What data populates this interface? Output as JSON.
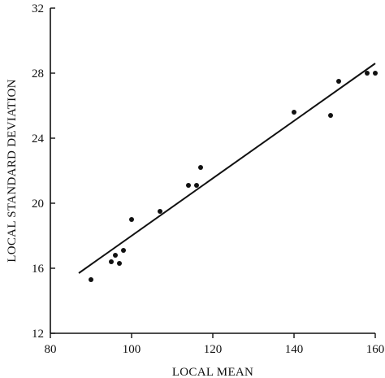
{
  "chart_data": {
    "type": "scatter",
    "title": "",
    "xlabel": "LOCAL  MEAN",
    "ylabel": "LOCAL STANDARD  DEVIATION",
    "xlim": [
      80,
      160
    ],
    "ylim": [
      12,
      32
    ],
    "xticks": [
      80,
      100,
      120,
      140,
      160
    ],
    "yticks": [
      12,
      16,
      20,
      24,
      28,
      32
    ],
    "grid": false,
    "legend": "none",
    "series": [
      {
        "points": [
          {
            "x": 90,
            "y": 15.3
          },
          {
            "x": 95,
            "y": 16.4
          },
          {
            "x": 96,
            "y": 16.8
          },
          {
            "x": 97,
            "y": 16.3
          },
          {
            "x": 98,
            "y": 17.1
          },
          {
            "x": 100,
            "y": 19.0
          },
          {
            "x": 107,
            "y": 19.5
          },
          {
            "x": 114,
            "y": 21.1
          },
          {
            "x": 116,
            "y": 21.1
          },
          {
            "x": 117,
            "y": 22.2
          },
          {
            "x": 140,
            "y": 25.6
          },
          {
            "x": 149,
            "y": 25.4
          },
          {
            "x": 151,
            "y": 27.5
          },
          {
            "x": 158,
            "y": 28.0
          },
          {
            "x": 160,
            "y": 28.0
          }
        ]
      }
    ],
    "regression_line": {
      "x": [
        87,
        160
      ],
      "y": [
        15.7,
        28.6
      ]
    },
    "colors": {
      "axis": "#111111",
      "marker": "#111111",
      "line": "#111111"
    }
  }
}
